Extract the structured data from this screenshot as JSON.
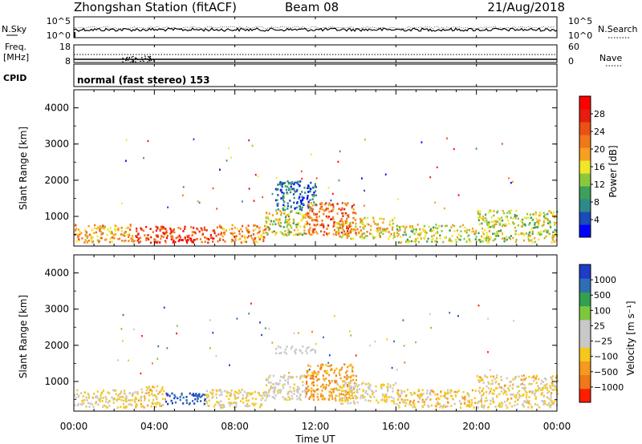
{
  "header": {
    "station_title": "Zhongshan Station (fitACF)",
    "beam_label": "Beam 08",
    "date": "21/Aug/2018"
  },
  "strip_nsky": {
    "left_label": "N.Sky",
    "right_label": "N.Search",
    "left_ticks": [
      "10^5",
      "10^0"
    ],
    "right_ticks": [
      "10^5",
      "10^0"
    ]
  },
  "strip_freq": {
    "left_label_line1": "Freq.",
    "left_label_line2": "[MHz]",
    "right_label": "Nave",
    "left_ticks": [
      "18",
      "8"
    ],
    "right_ticks": [
      "60",
      "0"
    ]
  },
  "strip_cpid": {
    "label": "CPID",
    "mode_text": "normal (fast stereo) 153"
  },
  "axes": {
    "xlabel": "Time UT",
    "x_ticks": [
      "00:00",
      "04:00",
      "08:00",
      "12:00",
      "16:00",
      "20:00",
      "00:00"
    ],
    "ylabel": "Slant Range [km]",
    "y_ticks": [
      "1000",
      "2000",
      "3000",
      "4000"
    ]
  },
  "colorbar_power": {
    "label": "Power [dB]",
    "ticks": [
      "4",
      "8",
      "12",
      "16",
      "20",
      "24",
      "28"
    ],
    "colors": [
      "#0000ff",
      "#1a4bb8",
      "#2d8a8a",
      "#3ca05a",
      "#8cc83c",
      "#f0e628",
      "#f5a01e",
      "#f07818",
      "#eb5014",
      "#e61e0f",
      "#ff0000"
    ]
  },
  "colorbar_velocity": {
    "label": "Velocity [m s⁻¹]",
    "ticks": [
      "1000",
      "500",
      "100",
      "25",
      "−25",
      "−100",
      "−500",
      "−1000"
    ],
    "colors": [
      "#1e3cc8",
      "#2e6eb4",
      "#32a050",
      "#7cc83c",
      "#c8c8c8",
      "#c8c8c8",
      "#f5c81e",
      "#f59a1e",
      "#f07818",
      "#ff1e00"
    ]
  },
  "chart_data": {
    "type": "heatmap",
    "x_range": [
      "00:00",
      "24:00"
    ],
    "y_range_km": [
      180,
      4500
    ],
    "panels": [
      {
        "name": "Power",
        "unit": "dB",
        "scale": [
          0,
          30
        ],
        "patches": [
          {
            "t": [
              0.0,
              3.0
            ],
            "r": [
              300,
              800
            ],
            "value": 18
          },
          {
            "t": [
              3.0,
              7.0
            ],
            "r": [
              300,
              750
            ],
            "value": 24
          },
          {
            "t": [
              4.5,
              6.0
            ],
            "r": [
              300,
              450
            ],
            "value": 30
          },
          {
            "t": [
              7.0,
              9.5
            ],
            "r": [
              300,
              800
            ],
            "value": 20
          },
          {
            "t": [
              9.5,
              11.5
            ],
            "r": [
              500,
              1200
            ],
            "value": 14
          },
          {
            "t": [
              10.0,
              12.0
            ],
            "r": [
              1200,
              2000
            ],
            "value": 6
          },
          {
            "t": [
              11.5,
              14.0
            ],
            "r": [
              500,
              1400
            ],
            "value": 22
          },
          {
            "t": [
              13.0,
              16.0
            ],
            "r": [
              400,
              1000
            ],
            "value": 16
          },
          {
            "t": [
              16.0,
              20.0
            ],
            "r": [
              300,
              800
            ],
            "value": 14
          },
          {
            "t": [
              20.0,
              24.0
            ],
            "r": [
              300,
              1200
            ],
            "value": 14
          }
        ]
      },
      {
        "name": "Velocity",
        "unit": "m s-1",
        "scale": [
          -1000,
          1000
        ],
        "patches": [
          {
            "t": [
              0.0,
              3.0
            ],
            "r": [
              300,
              800
            ],
            "value": -200
          },
          {
            "t": [
              3.0,
              4.5
            ],
            "r": [
              300,
              900
            ],
            "value": -300
          },
          {
            "t": [
              4.5,
              6.5
            ],
            "r": [
              400,
              700
            ],
            "value": 800
          },
          {
            "t": [
              6.5,
              9.5
            ],
            "r": [
              300,
              800
            ],
            "value": -200
          },
          {
            "t": [
              9.5,
              11.5
            ],
            "r": [
              500,
              1200
            ],
            "value": -100
          },
          {
            "t": [
              10.0,
              12.0
            ],
            "r": [
              1800,
              2000
            ],
            "value": 0
          },
          {
            "t": [
              11.5,
              14.0
            ],
            "r": [
              500,
              1500
            ],
            "value": -500
          },
          {
            "t": [
              13.0,
              16.0
            ],
            "r": [
              400,
              1000
            ],
            "value": -200
          },
          {
            "t": [
              16.0,
              20.0
            ],
            "r": [
              300,
              800
            ],
            "value": -300
          },
          {
            "t": [
              20.0,
              24.0
            ],
            "r": [
              300,
              1200
            ],
            "value": -250
          }
        ]
      }
    ]
  }
}
